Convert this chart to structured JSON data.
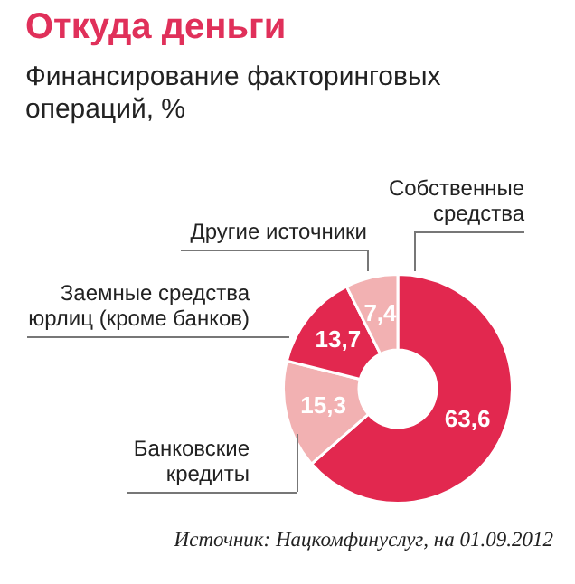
{
  "chart_data": {
    "type": "donut",
    "title": "Откуда деньги",
    "subtitle": "Финансирование факторинговых операций, %",
    "categories": [
      "Собственные средства",
      "Банковские кредиты",
      "Заемные средства юрлиц (кроме банков)",
      "Другие источники"
    ],
    "values": [
      63.6,
      15.3,
      13.7,
      7.4
    ],
    "colors": [
      "#e2284f",
      "#f2b1b2",
      "#e2284f",
      "#f2b1b2"
    ],
    "value_labels": [
      "63,6",
      "15,3",
      "13,7",
      "7,4"
    ],
    "annotations": [
      "Источник: Нацкомфинуслуг, на 01.09.2012"
    ]
  }
}
